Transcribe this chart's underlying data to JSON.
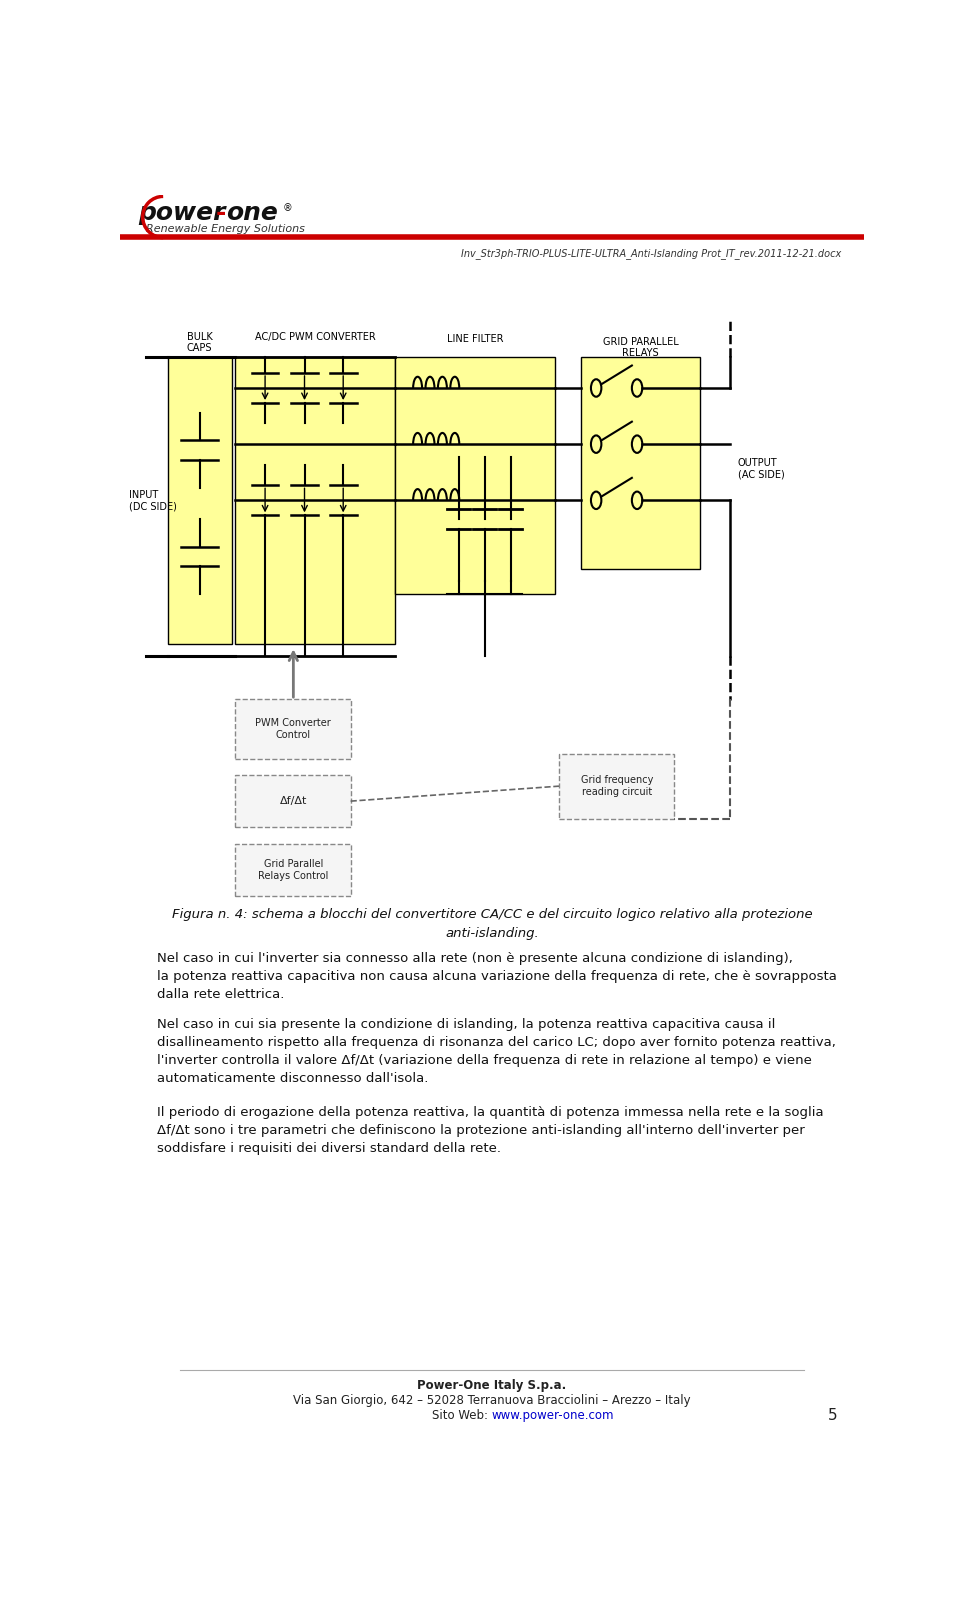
{
  "page_width": 9.6,
  "page_height": 16.21,
  "bg_color": "#ffffff",
  "header_line_color": "#cc0000",
  "doc_ref": "Inv_Str3ph-TRIO-PLUS-LITE-ULTRA_Anti-Islanding Prot_IT_rev.2011-12-21.docx",
  "page_number": "5",
  "figure_caption_line1": "Figura n. 4: schema a blocchi del convertitore CA/CC e del circuito logico relativo alla protezione",
  "figure_caption_line2": "anti-islanding.",
  "para1": "Nel caso in cui l'inverter sia connesso alla rete (non è presente alcuna condizione di islanding),\nla potenza reattiva capacitiva non causa alcuna variazione della frequenza di rete, che è sovrapposta\ndalla rete elettrica.",
  "para2": "Nel caso in cui sia presente la condizione di islanding, la potenza reattiva capacitiva causa il\ndisallineamento rispetto alla frequenza di risonanza del carico LC; dopo aver fornito potenza reattiva,\nl'inverter controlla il valore Δf/Δt (variazione della frequenza di rete in relazione al tempo) e viene\nautomaticamente disconnesso dall'isola.",
  "para3": "Il periodo di erogazione della potenza reattiva, la quantità di potenza immessa nella rete e la soglia\nΔf/Δt sono i tre parametri che definiscono la protezione anti-islanding all'interno dell'inverter per\nsoddisfare i requisiti dei diversi standard della rete.",
  "footer_company": "Power-One Italy S.p.a.",
  "footer_address": "Via San Giorgio, 642 – 52028 Terranuova Bracciolini – Arezzo – Italy",
  "footer_web": "Sito Web: www.power-one.com",
  "yellow_fill": "#ffff99",
  "box_line_color": "#000000"
}
